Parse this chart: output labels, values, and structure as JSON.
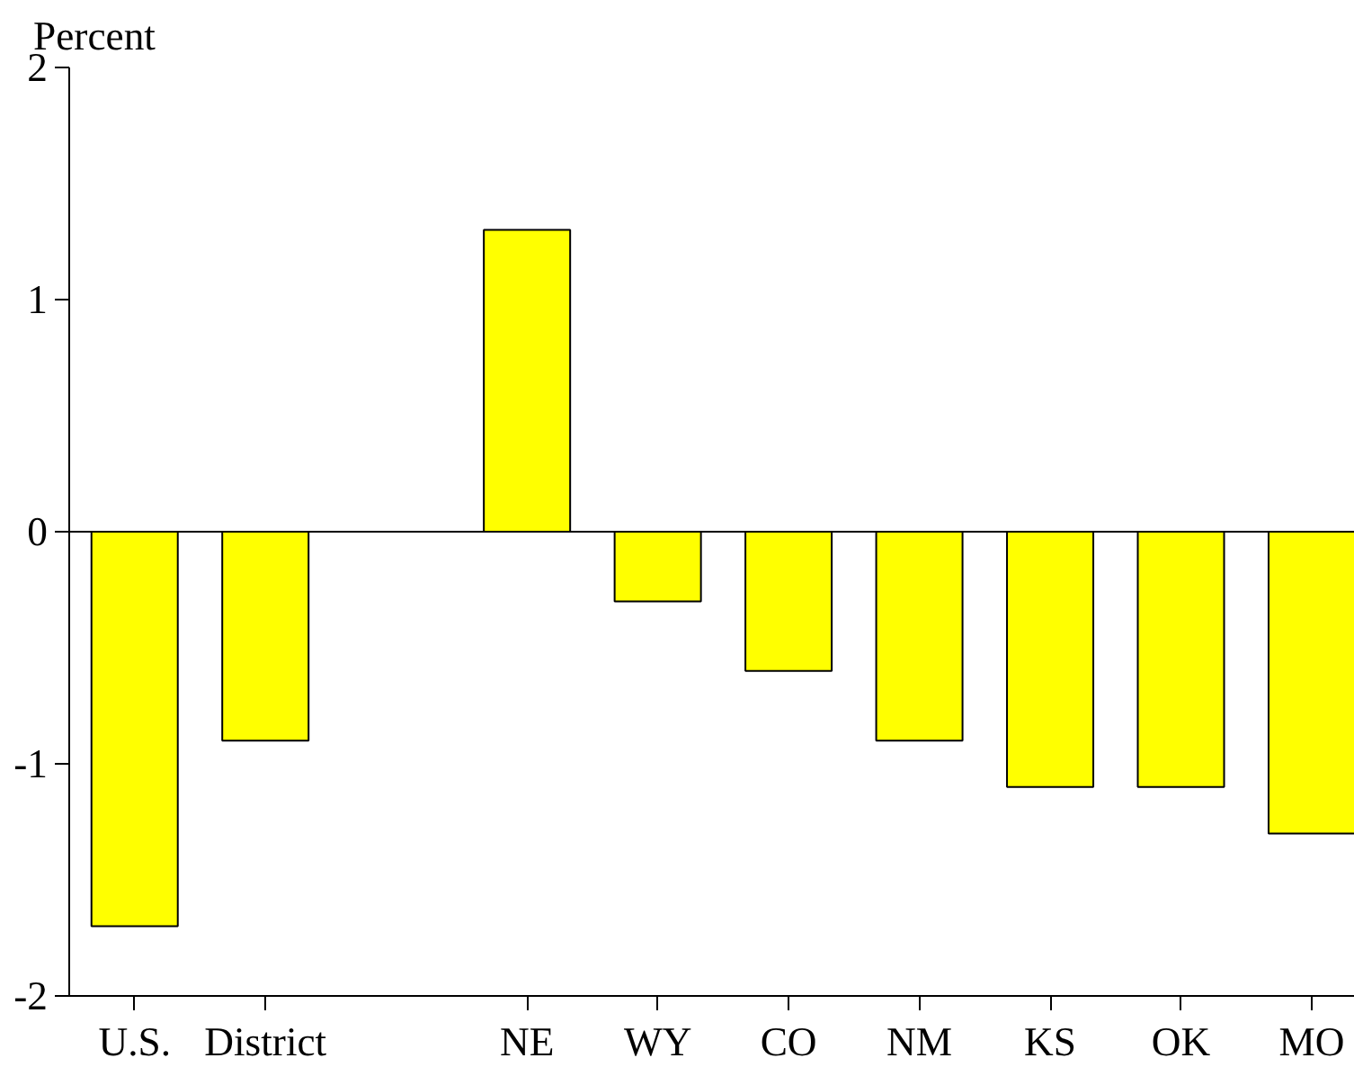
{
  "chart_data": {
    "type": "bar",
    "ylabel": "Percent",
    "categories": [
      "U.S.",
      "District",
      null,
      "NE",
      "WY",
      "CO",
      "NM",
      "KS",
      "OK",
      "MO"
    ],
    "values": [
      -1.7,
      -0.9,
      null,
      1.3,
      -0.3,
      -0.6,
      -0.9,
      -1.1,
      -1.1,
      -1.3
    ],
    "color": "#ffff00",
    "ylim": [
      -2,
      2
    ],
    "yticks": [
      -2,
      -1,
      0,
      1,
      2
    ],
    "ref_lines": [
      {
        "axis": "y",
        "value": 0,
        "color": "#000000"
      }
    ],
    "grid": false
  }
}
